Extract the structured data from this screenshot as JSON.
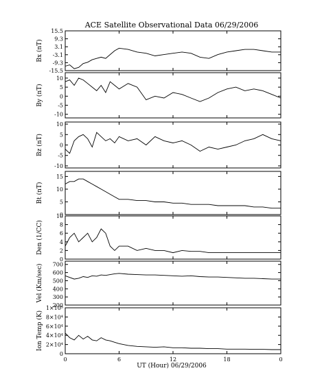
{
  "chart_data": [
    {
      "type": "line",
      "ylabel": "Bx (nT)",
      "yticks": [
        "15.5",
        "9.3",
        "3.1",
        "-3.1",
        "-9.3",
        "-15.5"
      ],
      "ylim": [
        -15.5,
        15.5
      ],
      "x": [
        0,
        0.5,
        1,
        1.5,
        2,
        2.5,
        3,
        3.5,
        4,
        4.5,
        5,
        5.5,
        6,
        7,
        8,
        9,
        10,
        11,
        12,
        13,
        14,
        15,
        16,
        17,
        18,
        19,
        20,
        21,
        22,
        23,
        24
      ],
      "values": [
        -12,
        -11,
        -14,
        -13,
        -10,
        -9,
        -7,
        -6,
        -5,
        -6,
        -3,
        0,
        2,
        1,
        -1,
        -2,
        -4,
        -3,
        -2,
        -1,
        -2,
        -5,
        -6,
        -3,
        -1,
        0,
        1,
        1,
        0,
        -1,
        -1
      ]
    },
    {
      "type": "line",
      "ylabel": "By (nT)",
      "yticks": [
        "10",
        "5",
        "0",
        "-5",
        "-10"
      ],
      "ylim": [
        -12,
        13
      ],
      "x": [
        0,
        0.5,
        1,
        1.5,
        2,
        2.5,
        3,
        3.5,
        4,
        4.5,
        5,
        5.5,
        6,
        7,
        8,
        9,
        10,
        11,
        12,
        13,
        14,
        15,
        16,
        17,
        18,
        19,
        20,
        21,
        22,
        23,
        24
      ],
      "values": [
        8,
        9,
        6,
        10,
        9,
        7,
        5,
        3,
        6,
        2,
        8,
        6,
        4,
        7,
        5,
        -2,
        0,
        -1,
        2,
        1,
        -1,
        -3,
        -1,
        2,
        4,
        5,
        3,
        4,
        3,
        1,
        -1
      ]
    },
    {
      "type": "line",
      "ylabel": "Bz (nT)",
      "yticks": [
        "10",
        "5",
        "0",
        "-5",
        "-10"
      ],
      "ylim": [
        -11,
        11
      ],
      "x": [
        0,
        0.5,
        1,
        1.5,
        2,
        2.5,
        3,
        3.5,
        4,
        4.5,
        5,
        5.5,
        6,
        7,
        8,
        9,
        10,
        11,
        12,
        13,
        14,
        15,
        16,
        17,
        18,
        19,
        20,
        21,
        22,
        23,
        24
      ],
      "values": [
        -2,
        -4,
        2,
        4,
        5,
        3,
        -1,
        6,
        4,
        2,
        3,
        1,
        4,
        2,
        3,
        0,
        4,
        2,
        1,
        2,
        0,
        -3,
        -1,
        -2,
        -1,
        0,
        2,
        3,
        5,
        3,
        2
      ]
    },
    {
      "type": "line",
      "ylabel": "Bt (nT)",
      "yticks": [
        "15",
        "10",
        "5",
        "0"
      ],
      "ylim": [
        0,
        17
      ],
      "x": [
        0,
        0.5,
        1,
        1.5,
        2,
        2.5,
        3,
        3.5,
        4,
        4.5,
        5,
        5.5,
        6,
        7,
        8,
        9,
        10,
        11,
        12,
        13,
        14,
        15,
        16,
        17,
        18,
        19,
        20,
        21,
        22,
        23,
        24
      ],
      "values": [
        12,
        13,
        13,
        14,
        14,
        13,
        12,
        11,
        10,
        9,
        8,
        7,
        6,
        6,
        5.5,
        5.5,
        5,
        5,
        4.5,
        4.5,
        4,
        4,
        4,
        3.5,
        3.5,
        3.5,
        3.5,
        3,
        3,
        2.5,
        2.5
      ]
    },
    {
      "type": "line",
      "ylabel": "Den (1/CC)",
      "yticks": [
        "10",
        "8",
        "6",
        "4",
        "2",
        "0"
      ],
      "ylim": [
        0,
        10
      ],
      "x": [
        0,
        0.5,
        1,
        1.5,
        2,
        2.5,
        3,
        3.5,
        4,
        4.5,
        5,
        5.5,
        6,
        7,
        8,
        9,
        10,
        11,
        12,
        13,
        14,
        15,
        16,
        17,
        18,
        19,
        20,
        21,
        22,
        23,
        24
      ],
      "values": [
        3,
        5,
        6,
        4,
        5,
        6,
        4,
        5,
        7,
        6,
        3,
        2,
        3,
        3,
        2,
        2.5,
        2,
        2,
        1.5,
        2,
        1.8,
        1.8,
        1.5,
        1.5,
        1.5,
        1.5,
        1.5,
        1.5,
        1.5,
        1.5,
        1.5
      ]
    },
    {
      "type": "line",
      "ylabel": "Vel (Km/sec)",
      "yticks": [
        "700",
        "600",
        "500",
        "400",
        "300",
        "200"
      ],
      "ylim": [
        200,
        740
      ],
      "x": [
        0,
        0.5,
        1,
        1.5,
        2,
        2.5,
        3,
        3.5,
        4,
        4.5,
        5,
        5.5,
        6,
        7,
        8,
        9,
        10,
        11,
        12,
        13,
        14,
        15,
        16,
        17,
        18,
        19,
        20,
        21,
        22,
        23,
        24
      ],
      "values": [
        560,
        540,
        520,
        530,
        550,
        540,
        560,
        555,
        570,
        565,
        575,
        585,
        590,
        580,
        575,
        570,
        570,
        565,
        560,
        555,
        560,
        550,
        545,
        545,
        540,
        535,
        530,
        530,
        525,
        520,
        520
      ]
    },
    {
      "type": "line",
      "ylabel": "Ion Temp (K)",
      "ytick_labels": [
        "1×10⁵",
        "8×10⁴",
        "6×10⁴",
        "4×10⁴",
        "2×10⁴",
        "0"
      ],
      "ylim": [
        0,
        100000
      ],
      "x": [
        0,
        0.5,
        1,
        1.5,
        2,
        2.5,
        3,
        3.5,
        4,
        4.5,
        5,
        5.5,
        6,
        7,
        8,
        9,
        10,
        11,
        12,
        13,
        14,
        15,
        16,
        17,
        18,
        19,
        20,
        21,
        22,
        23,
        24
      ],
      "values": [
        45000,
        35000,
        30000,
        40000,
        32000,
        38000,
        30000,
        28000,
        35000,
        30000,
        28000,
        25000,
        22000,
        18000,
        16000,
        15000,
        14000,
        15000,
        13000,
        13000,
        12000,
        12000,
        11000,
        11000,
        10000,
        10000,
        10000,
        9500,
        9500,
        9000,
        9000
      ]
    }
  ],
  "title": "ACE Satellite Observational Data   06/29/2006",
  "x_ticks": [
    "0",
    "6",
    "12",
    "18",
    "0"
  ],
  "x_label": "UT (Hour)   06/29/2006"
}
